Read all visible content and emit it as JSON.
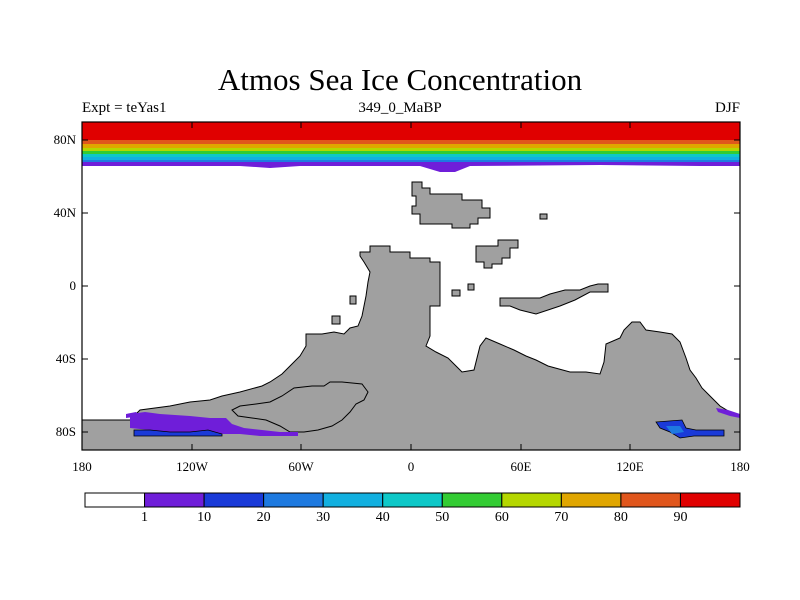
{
  "title": "Atmos Sea Ice Concentration",
  "subtitle_left": "Expt = teYas1",
  "subtitle_center": "349_0_MaBP",
  "subtitle_right": "DJF",
  "lat_labels": [
    "80N",
    "40N",
    "0",
    "40S",
    "80S"
  ],
  "lon_labels": [
    "180",
    "120W",
    "60W",
    "0",
    "60E",
    "120E",
    "180"
  ],
  "colorbar": {
    "colors": [
      "#ffffff",
      "#6f1ed9",
      "#1a3ad8",
      "#1e7ae0",
      "#12b0e0",
      "#0ec8c8",
      "#33cc33",
      "#b5d700",
      "#e0a600",
      "#e0561c",
      "#e00000"
    ],
    "labels": [
      "1",
      "10",
      "20",
      "30",
      "40",
      "50",
      "60",
      "70",
      "80",
      "90"
    ]
  },
  "colors": {
    "land": "#a0a0a0",
    "ocean": "#ffffff"
  },
  "map": {
    "type": "filled_contour",
    "projection": "cylindrical_equidistant",
    "variable": "sea_ice_concentration_percent",
    "lon_range": [
      -180,
      180
    ],
    "lat_range": [
      -90,
      90
    ]
  }
}
